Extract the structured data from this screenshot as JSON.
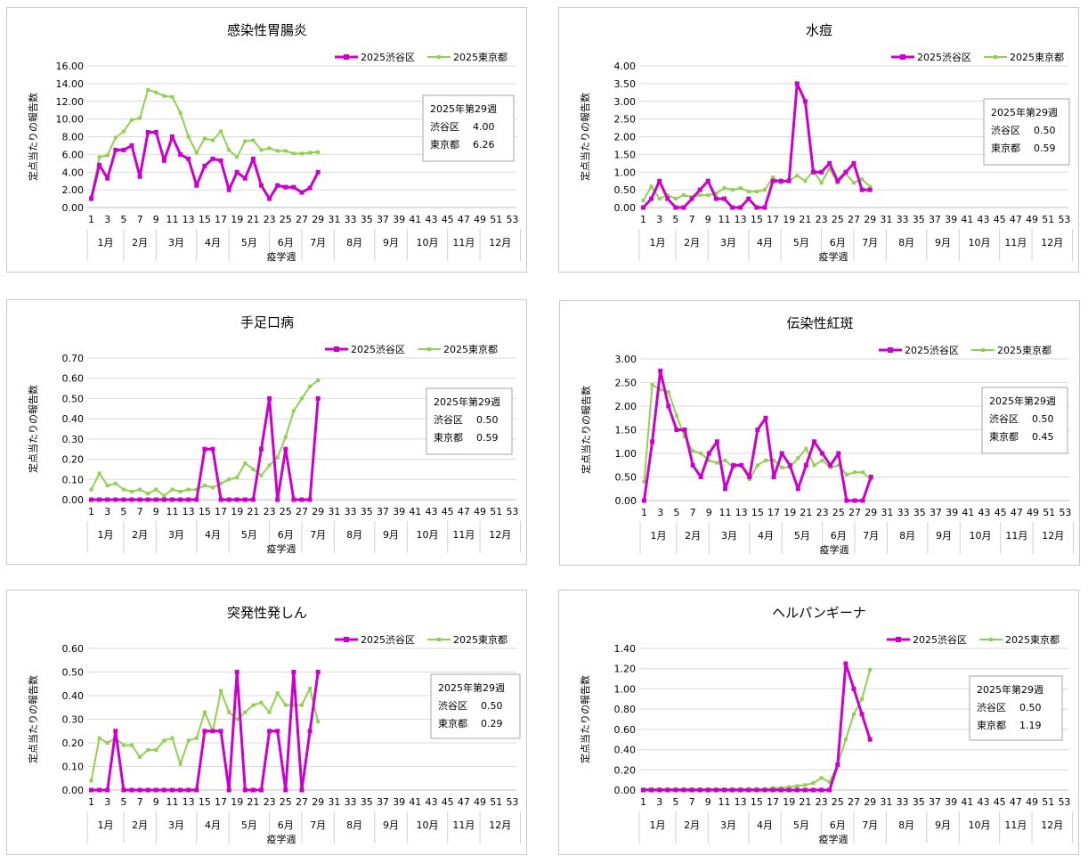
{
  "legend": {
    "shibuya": "2025渋谷区",
    "tokyo": "2025東京都"
  },
  "axis_labels": {
    "x": "疫学週",
    "y": "定点当たりの報告数"
  },
  "x_ticks": [
    "1",
    "3",
    "5",
    "7",
    "9",
    "11",
    "13",
    "15",
    "17",
    "19",
    "21",
    "23",
    "25",
    "27",
    "29",
    "31",
    "33",
    "35",
    "37",
    "39",
    "41",
    "43",
    "45",
    "47",
    "49",
    "51",
    "53"
  ],
  "months": [
    "1月",
    "2月",
    "3月",
    "4月",
    "5月",
    "6月",
    "7月",
    "8月",
    "9月",
    "10月",
    "11月",
    "12月"
  ],
  "colors": {
    "shibuya": "#cc00cc",
    "tokyo": "#92d050",
    "grid": "#d9d9d9"
  },
  "chart_data": [
    {
      "type": "line",
      "title": "感染性胃腸炎",
      "xlabel": "疫学週",
      "ylabel": "定点当たりの報告数",
      "x": [
        1,
        2,
        3,
        4,
        5,
        6,
        7,
        8,
        9,
        10,
        11,
        12,
        13,
        14,
        15,
        16,
        17,
        18,
        19,
        20,
        21,
        22,
        23,
        24,
        25,
        26,
        27,
        28,
        29
      ],
      "ylim": [
        0,
        16
      ],
      "yticks": [
        "0.00",
        "2.00",
        "4.00",
        "6.00",
        "8.00",
        "10.00",
        "12.00",
        "14.00",
        "16.00"
      ],
      "series": [
        {
          "name": "2025渋谷区",
          "values": [
            1.0,
            4.8,
            3.3,
            6.5,
            6.5,
            7.0,
            3.5,
            8.5,
            8.5,
            5.3,
            8.0,
            6.0,
            5.5,
            2.5,
            4.7,
            5.5,
            5.3,
            2.0,
            4.0,
            3.3,
            5.5,
            2.5,
            1.0,
            2.5,
            2.3,
            2.3,
            1.7,
            2.2,
            4.0
          ]
        },
        {
          "name": "2025東京都",
          "values": [
            1.2,
            5.7,
            5.9,
            7.9,
            8.6,
            9.9,
            10.1,
            13.3,
            13.0,
            12.6,
            12.5,
            10.7,
            8.0,
            6.2,
            7.8,
            7.6,
            8.6,
            6.5,
            5.7,
            7.5,
            7.6,
            6.5,
            6.7,
            6.4,
            6.4,
            6.1,
            6.1,
            6.2,
            6.26
          ]
        }
      ],
      "info": {
        "header": "2025年第29週",
        "rows": [
          {
            "label": "渋谷区",
            "value": "4.00"
          },
          {
            "label": "東京都",
            "value": "6.26"
          }
        ]
      }
    },
    {
      "type": "line",
      "title": "水痘",
      "xlabel": "疫学週",
      "ylabel": "定点当たりの報告数",
      "x": [
        1,
        2,
        3,
        4,
        5,
        6,
        7,
        8,
        9,
        10,
        11,
        12,
        13,
        14,
        15,
        16,
        17,
        18,
        19,
        20,
        21,
        22,
        23,
        24,
        25,
        26,
        27,
        28,
        29
      ],
      "ylim": [
        0,
        4
      ],
      "yticks": [
        "0.00",
        "0.50",
        "1.00",
        "1.50",
        "2.00",
        "2.50",
        "3.00",
        "3.50",
        "4.00"
      ],
      "series": [
        {
          "name": "2025渋谷区",
          "values": [
            0.0,
            0.25,
            0.75,
            0.25,
            0.0,
            0.0,
            0.25,
            0.5,
            0.75,
            0.25,
            0.25,
            0.0,
            0.0,
            0.25,
            0.0,
            0.0,
            0.75,
            0.75,
            0.75,
            3.5,
            3.0,
            1.0,
            1.0,
            1.25,
            0.75,
            1.0,
            1.25,
            0.5,
            0.5
          ]
        },
        {
          "name": "2025東京都",
          "values": [
            0.2,
            0.6,
            0.25,
            0.35,
            0.25,
            0.35,
            0.3,
            0.35,
            0.35,
            0.4,
            0.55,
            0.5,
            0.55,
            0.45,
            0.45,
            0.5,
            0.85,
            0.7,
            0.75,
            0.9,
            0.75,
            1.05,
            0.7,
            1.1,
            0.7,
            0.95,
            0.7,
            0.8,
            0.59
          ]
        }
      ],
      "info": {
        "header": "2025年第29週",
        "rows": [
          {
            "label": "渋谷区",
            "value": "0.50"
          },
          {
            "label": "東京都",
            "value": "0.59"
          }
        ]
      }
    },
    {
      "type": "line",
      "title": "手足口病",
      "xlabel": "疫学週",
      "ylabel": "定点当たりの報告数",
      "x": [
        1,
        2,
        3,
        4,
        5,
        6,
        7,
        8,
        9,
        10,
        11,
        12,
        13,
        14,
        15,
        16,
        17,
        18,
        19,
        20,
        21,
        22,
        23,
        24,
        25,
        26,
        27,
        28,
        29
      ],
      "ylim": [
        0,
        0.7
      ],
      "yticks": [
        "0.00",
        "0.10",
        "0.20",
        "0.30",
        "0.40",
        "0.50",
        "0.60",
        "0.70"
      ],
      "series": [
        {
          "name": "2025渋谷区",
          "values": [
            0,
            0,
            0,
            0,
            0,
            0,
            0,
            0,
            0,
            0,
            0,
            0,
            0,
            0,
            0.25,
            0.25,
            0,
            0,
            0,
            0,
            0,
            0.25,
            0.5,
            0,
            0.25,
            0,
            0,
            0,
            0.5
          ]
        },
        {
          "name": "2025東京都",
          "values": [
            0.05,
            0.13,
            0.07,
            0.08,
            0.05,
            0.04,
            0.05,
            0.03,
            0.05,
            0.02,
            0.05,
            0.04,
            0.05,
            0.05,
            0.07,
            0.06,
            0.08,
            0.1,
            0.11,
            0.18,
            0.15,
            0.12,
            0.17,
            0.21,
            0.31,
            0.44,
            0.5,
            0.56,
            0.59
          ]
        }
      ],
      "info": {
        "header": "2025年第29週",
        "rows": [
          {
            "label": "渋谷区",
            "value": "0.50"
          },
          {
            "label": "東京都",
            "value": "0.59"
          }
        ]
      }
    },
    {
      "type": "line",
      "title": "伝染性紅斑",
      "xlabel": "疫学週",
      "ylabel": "定点当たりの報告数",
      "x": [
        1,
        2,
        3,
        4,
        5,
        6,
        7,
        8,
        9,
        10,
        11,
        12,
        13,
        14,
        15,
        16,
        17,
        18,
        19,
        20,
        21,
        22,
        23,
        24,
        25,
        26,
        27,
        28,
        29
      ],
      "ylim": [
        0,
        3
      ],
      "yticks": [
        "0.00",
        "0.50",
        "1.00",
        "1.50",
        "2.00",
        "2.50",
        "3.00"
      ],
      "series": [
        {
          "name": "2025渋谷区",
          "values": [
            0.0,
            1.25,
            2.75,
            2.0,
            1.5,
            1.5,
            0.75,
            0.5,
            1.0,
            1.25,
            0.25,
            0.75,
            0.75,
            0.5,
            1.5,
            1.75,
            0.5,
            1.0,
            0.75,
            0.25,
            0.75,
            1.25,
            1.0,
            0.75,
            1.0,
            0.0,
            0.0,
            0.0,
            0.5
          ]
        },
        {
          "name": "2025東京都",
          "values": [
            0.4,
            2.45,
            2.35,
            2.3,
            1.8,
            1.35,
            1.05,
            1.0,
            0.85,
            0.8,
            0.85,
            0.7,
            0.75,
            0.45,
            0.75,
            0.85,
            0.85,
            0.7,
            0.7,
            0.9,
            1.1,
            0.75,
            0.85,
            0.7,
            0.75,
            0.55,
            0.6,
            0.6,
            0.45
          ]
        }
      ],
      "info": {
        "header": "2025年第29週",
        "rows": [
          {
            "label": "渋谷区",
            "value": "0.50"
          },
          {
            "label": "東京都",
            "value": "0.45"
          }
        ]
      }
    },
    {
      "type": "line",
      "title": "突発性発しん",
      "xlabel": "疫学週",
      "ylabel": "定点当たりの報告数",
      "x": [
        1,
        2,
        3,
        4,
        5,
        6,
        7,
        8,
        9,
        10,
        11,
        12,
        13,
        14,
        15,
        16,
        17,
        18,
        19,
        20,
        21,
        22,
        23,
        24,
        25,
        26,
        27,
        28,
        29
      ],
      "ylim": [
        0,
        0.6
      ],
      "yticks": [
        "0.00",
        "0.10",
        "0.20",
        "0.30",
        "0.40",
        "0.50",
        "0.60"
      ],
      "series": [
        {
          "name": "2025渋谷区",
          "values": [
            0,
            0,
            0,
            0.25,
            0,
            0,
            0,
            0,
            0,
            0,
            0,
            0,
            0,
            0,
            0.25,
            0.25,
            0.25,
            0,
            0.5,
            0,
            0,
            0,
            0.25,
            0.25,
            0,
            0.5,
            0,
            0.25,
            0.5
          ]
        },
        {
          "name": "2025東京都",
          "values": [
            0.04,
            0.22,
            0.2,
            0.22,
            0.19,
            0.19,
            0.14,
            0.17,
            0.17,
            0.21,
            0.22,
            0.11,
            0.21,
            0.22,
            0.33,
            0.25,
            0.42,
            0.33,
            0.3,
            0.33,
            0.36,
            0.37,
            0.33,
            0.41,
            0.36,
            0.36,
            0.36,
            0.43,
            0.29
          ]
        }
      ],
      "info": {
        "header": "2025年第29週",
        "rows": [
          {
            "label": "渋谷区",
            "value": "0.50"
          },
          {
            "label": "東京都",
            "value": "0.29"
          }
        ]
      }
    },
    {
      "type": "line",
      "title": "ヘルパンギーナ",
      "xlabel": "疫学週",
      "ylabel": "定点当たりの報告数",
      "x": [
        1,
        2,
        3,
        4,
        5,
        6,
        7,
        8,
        9,
        10,
        11,
        12,
        13,
        14,
        15,
        16,
        17,
        18,
        19,
        20,
        21,
        22,
        23,
        24,
        25,
        26,
        27,
        28,
        29
      ],
      "ylim": [
        0,
        1.4
      ],
      "yticks": [
        "0.00",
        "0.20",
        "0.40",
        "0.60",
        "0.80",
        "1.00",
        "1.20",
        "1.40"
      ],
      "series": [
        {
          "name": "2025渋谷区",
          "values": [
            0,
            0,
            0,
            0,
            0,
            0,
            0,
            0,
            0,
            0,
            0,
            0,
            0,
            0,
            0,
            0,
            0,
            0,
            0,
            0,
            0,
            0,
            0,
            0,
            0.25,
            1.25,
            1.0,
            0.75,
            0.5
          ]
        },
        {
          "name": "2025東京都",
          "values": [
            0.01,
            0.01,
            0.01,
            0.01,
            0.01,
            0.01,
            0.01,
            0.01,
            0.01,
            0.01,
            0.01,
            0.01,
            0.01,
            0.01,
            0.01,
            0.01,
            0.02,
            0.02,
            0.03,
            0.04,
            0.05,
            0.07,
            0.12,
            0.08,
            0.25,
            0.5,
            0.75,
            0.9,
            1.19
          ]
        }
      ],
      "info": {
        "header": "2025年第29週",
        "rows": [
          {
            "label": "渋谷区",
            "value": "0.50"
          },
          {
            "label": "東京都",
            "value": "1.19"
          }
        ]
      }
    }
  ]
}
